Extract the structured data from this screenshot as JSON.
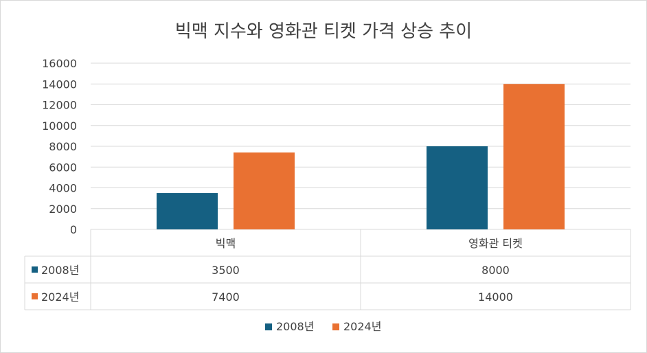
{
  "chart_data": {
    "type": "bar",
    "title": "빅맥 지수와 영화관 티켓 가격 상승 추이",
    "categories": [
      "빅맥",
      "영화관 티켓"
    ],
    "series": [
      {
        "name": "2008년",
        "values": [
          3500,
          8000
        ],
        "color": "#156082"
      },
      {
        "name": "2024년",
        "values": [
          7400,
          14000
        ],
        "color": "#e97132"
      }
    ],
    "y_ticks": [
      "0",
      "2000",
      "4000",
      "6000",
      "8000",
      "10000",
      "12000",
      "14000",
      "16000"
    ],
    "ylim": [
      0,
      16000
    ],
    "grid": true,
    "legend": "bottom",
    "data_table": true
  }
}
